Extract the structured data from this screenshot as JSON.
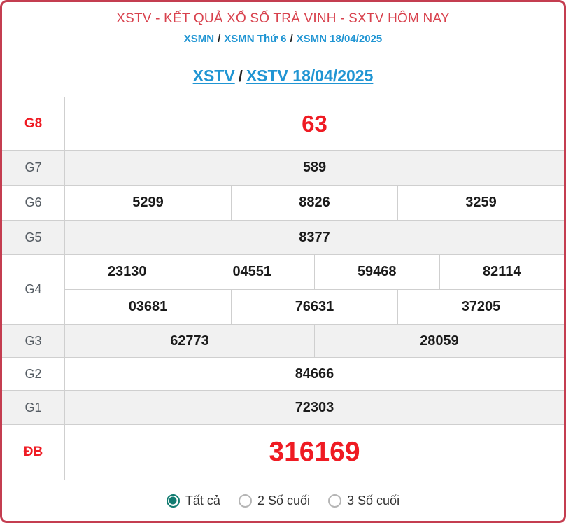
{
  "header": {
    "title": "XSTV - KẾT QUẢ XỔ SỐ TRÀ VINH - SXTV HÔM NAY",
    "separator": "/",
    "breadcrumb": [
      {
        "label": "XSMN"
      },
      {
        "label": "XSMN Thứ 6"
      },
      {
        "label": "XSMN 18/04/2025"
      }
    ]
  },
  "subheader": {
    "separator": "/",
    "links": [
      {
        "label": "XSTV"
      },
      {
        "label": "XSTV 18/04/2025"
      }
    ]
  },
  "results": {
    "rows": [
      {
        "label": "G8",
        "highlight": true,
        "groups": [
          [
            "63"
          ]
        ]
      },
      {
        "label": "G7",
        "highlight": false,
        "groups": [
          [
            "589"
          ]
        ]
      },
      {
        "label": "G6",
        "highlight": false,
        "groups": [
          [
            "5299",
            "8826",
            "3259"
          ]
        ]
      },
      {
        "label": "G5",
        "highlight": false,
        "groups": [
          [
            "8377"
          ]
        ]
      },
      {
        "label": "G4",
        "highlight": false,
        "groups": [
          [
            "23130",
            "04551",
            "59468",
            "82114"
          ],
          [
            "03681",
            "76631",
            "37205"
          ]
        ]
      },
      {
        "label": "G3",
        "highlight": false,
        "groups": [
          [
            "62773",
            "28059"
          ]
        ]
      },
      {
        "label": "G2",
        "highlight": false,
        "groups": [
          [
            "84666"
          ]
        ]
      },
      {
        "label": "G1",
        "highlight": false,
        "groups": [
          [
            "72303"
          ]
        ]
      },
      {
        "label": "ĐB",
        "highlight": true,
        "groups": [
          [
            "316169"
          ]
        ]
      }
    ]
  },
  "footer": {
    "options": [
      {
        "label": "Tất cả",
        "selected": true
      },
      {
        "label": "2 Số cuối",
        "selected": false
      },
      {
        "label": "3 Số cuối",
        "selected": false
      }
    ]
  },
  "colors": {
    "card_border": "#c43d50",
    "title_red": "#d8414d",
    "number_red": "#ef1b23",
    "link_blue": "#2095d3",
    "row_gray": "#f1f1f1",
    "radio_teal": "#127c71"
  }
}
